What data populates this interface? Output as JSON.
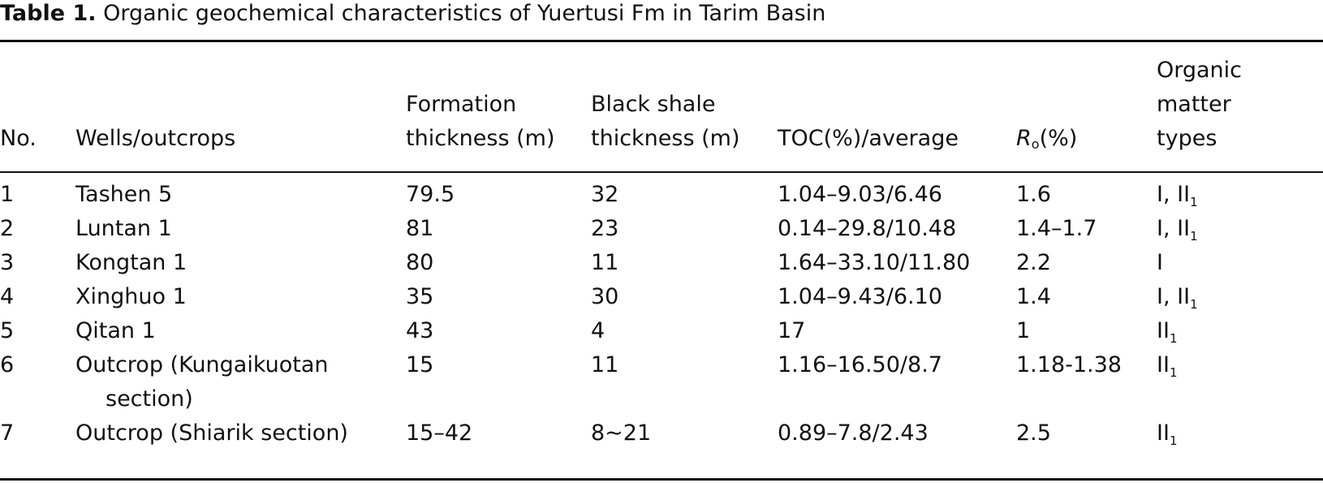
{
  "caption": {
    "label": "Table 1.",
    "text": "Organic geochemical characteristics of Yuertusi Fm in Tarim Basin"
  },
  "headers": {
    "no": "No.",
    "wells": "Wells/outcrops",
    "formation_1": "Formation",
    "formation_2": "thickness (m)",
    "shale_1": "Black shale",
    "shale_2": "thickness (m)",
    "toc": "TOC(%)/average",
    "ro_r": "R",
    "ro_sub": "o",
    "ro_rest": "(%)",
    "om_1": "Organic",
    "om_2": "matter",
    "om_3": "types"
  },
  "rows": [
    {
      "no": "1",
      "well": "Tashen 5",
      "well2": "",
      "formation": "79.5",
      "shale": "32",
      "toc": "1.04–9.03/6.46",
      "ro": "1.6",
      "om_main": "I, II",
      "om_sub": "1"
    },
    {
      "no": "2",
      "well": "Luntan 1",
      "well2": "",
      "formation": "81",
      "shale": "23",
      "toc": "0.14–29.8/10.48",
      "ro": "1.4–1.7",
      "om_main": "I, II",
      "om_sub": "1"
    },
    {
      "no": "3",
      "well": "Kongtan 1",
      "well2": "",
      "formation": "80",
      "shale": "11",
      "toc": "1.64–33.10/11.80",
      "ro": "2.2",
      "om_main": "I",
      "om_sub": ""
    },
    {
      "no": "4",
      "well": "Xinghuo 1",
      "well2": "",
      "formation": "35",
      "shale": "30",
      "toc": "1.04–9.43/6.10",
      "ro": "1.4",
      "om_main": "I, II",
      "om_sub": "1"
    },
    {
      "no": "5",
      "well": "Qitan 1",
      "well2": "",
      "formation": "43",
      "shale": "4",
      "toc": "17",
      "ro": "1",
      "om_main": "II",
      "om_sub": "1"
    },
    {
      "no": "6",
      "well": "Outcrop (Kungaikuotan",
      "well2": "section)",
      "formation": "15",
      "shale": "11",
      "toc": "1.16–16.50/8.7",
      "ro": "1.18-1.38",
      "om_main": "II",
      "om_sub": "1"
    },
    {
      "no": "7",
      "well": "Outcrop (Shiarik section)",
      "well2": "",
      "formation": "15–42",
      "shale": "8∼21",
      "toc": "0.89–7.8/2.43",
      "ro": "2.5",
      "om_main": "II",
      "om_sub": "1"
    }
  ]
}
